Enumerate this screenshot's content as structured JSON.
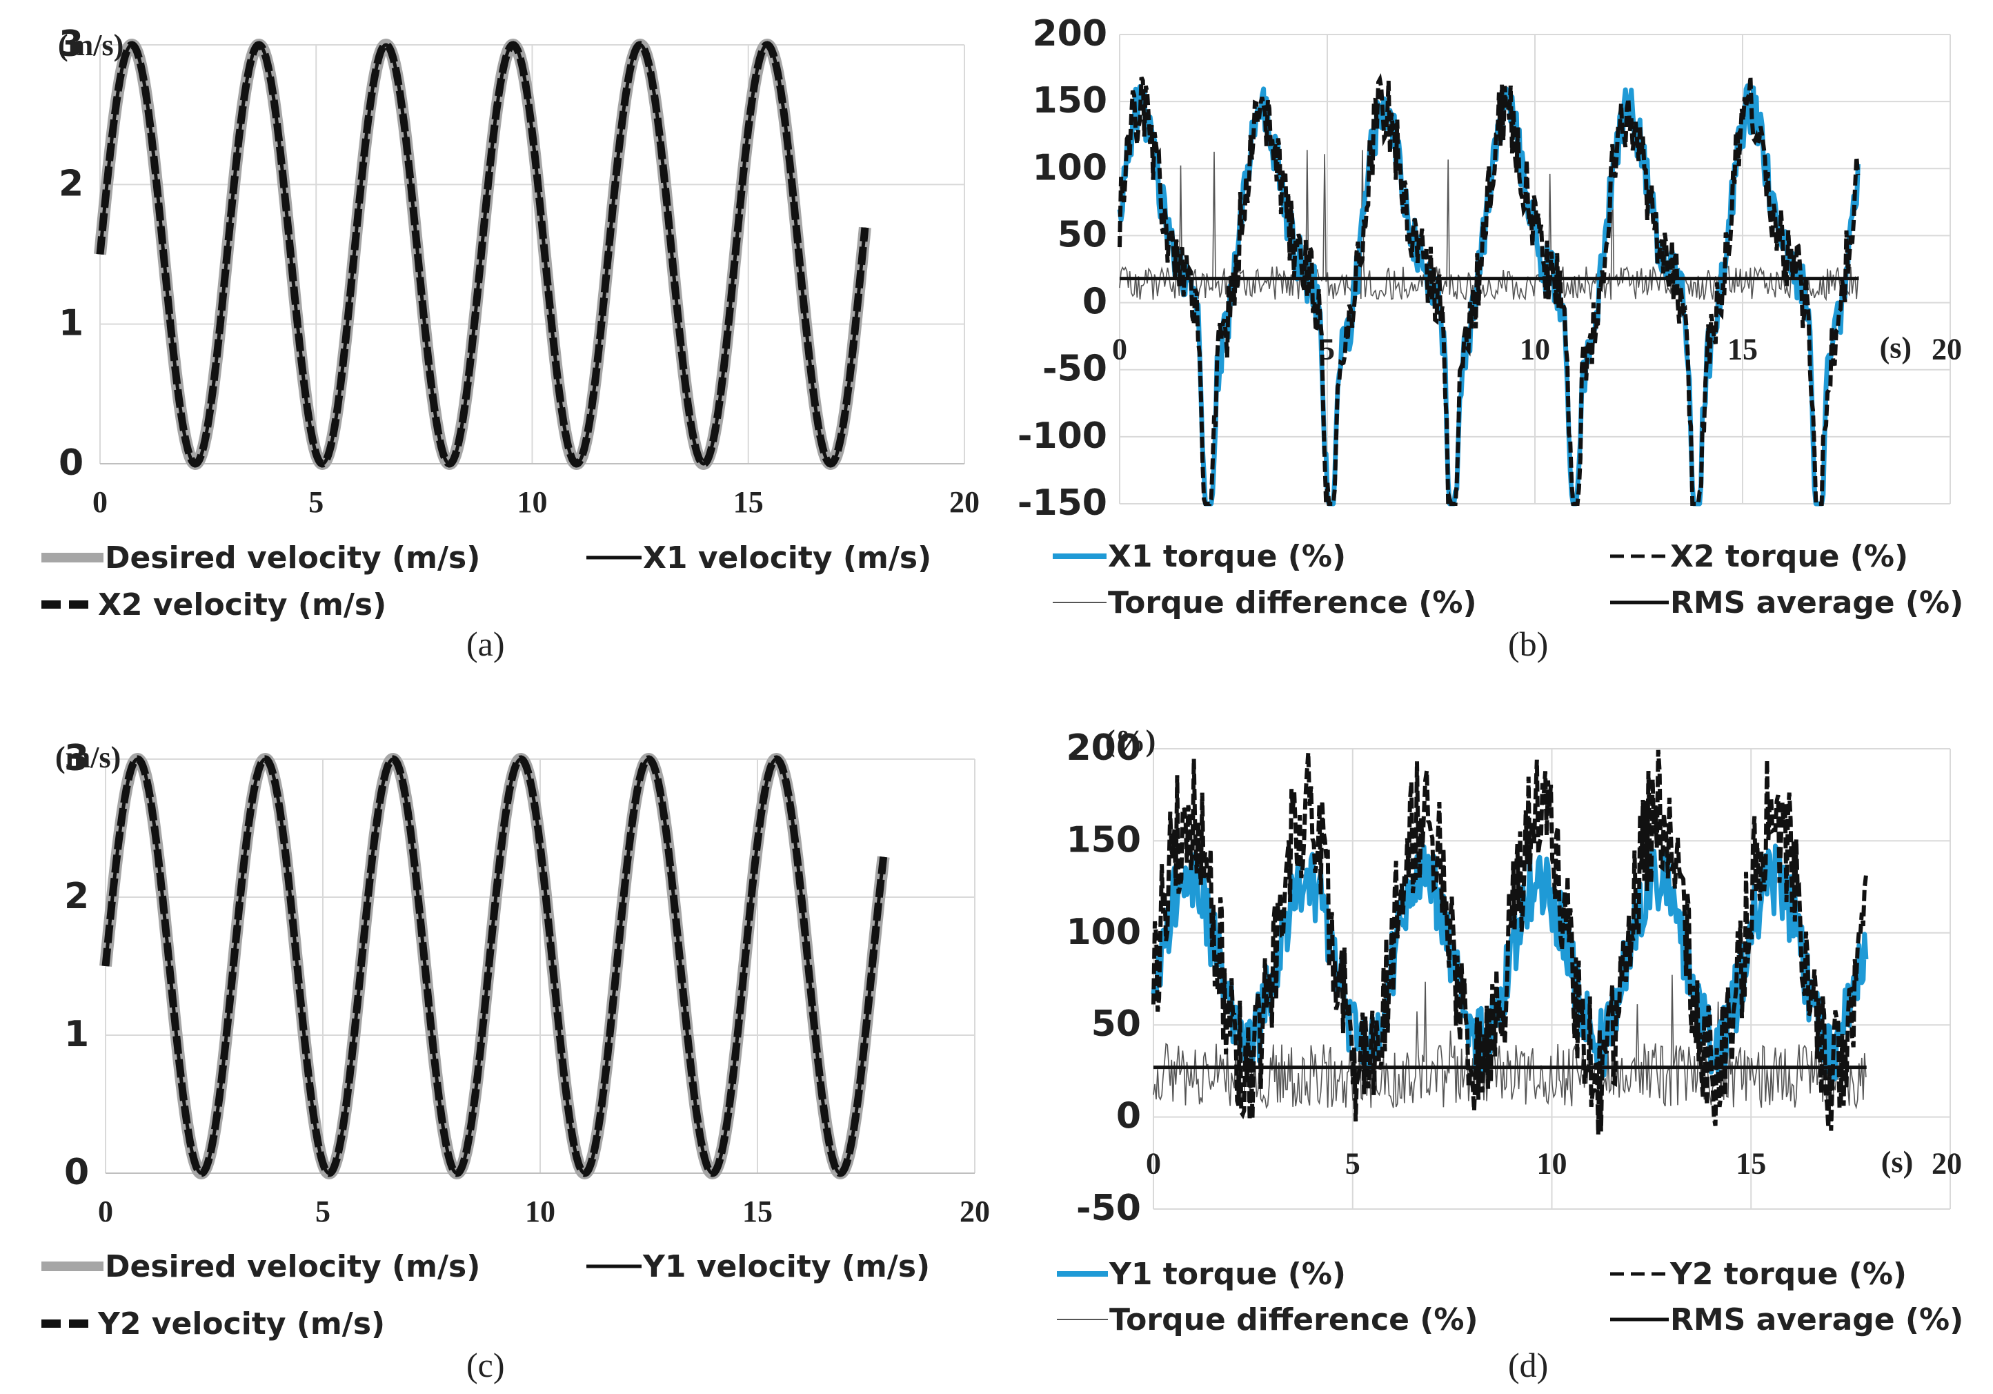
{
  "figure": {
    "colors": {
      "desired": "#a6a6a6",
      "black": "#111111",
      "blue": "#1f9ad6",
      "diff": "#555555",
      "grid": "#d9d9d9"
    }
  },
  "chart_data": [
    {
      "id": "a",
      "type": "line",
      "caption": "(a)",
      "ylabel": "(m/s)",
      "xlim": [
        0,
        20
      ],
      "ylim": [
        0,
        3
      ],
      "xticks": [
        "0",
        "5",
        "10",
        "15",
        "20"
      ],
      "yticks": [
        "0",
        "1",
        "2",
        "3"
      ],
      "signal": {
        "mean": 1.5,
        "amplitude": 1.5,
        "period": 2.94,
        "duration": 17.7
      },
      "series": [
        {
          "name": "Desired velocity (m/s)",
          "role": "desired"
        },
        {
          "name": "X1 velocity (m/s)",
          "role": "solid"
        },
        {
          "name": "X2 velocity (m/s)",
          "role": "dashed"
        }
      ],
      "legend": [
        "Desired velocity (m/s)",
        "X1 velocity (m/s)",
        "X2 velocity (m/s)"
      ]
    },
    {
      "id": "b",
      "type": "line",
      "caption": "(b)",
      "xlabel": "(s)",
      "xlim": [
        0,
        20
      ],
      "ylim": [
        -150,
        200
      ],
      "xticks": [
        "0",
        "5",
        "10",
        "15",
        "20"
      ],
      "yticks": [
        "-150",
        "-100",
        "-50",
        "0",
        "50",
        "100",
        "150",
        "200"
      ],
      "rms_average": 18,
      "duration": 17.8,
      "series": [
        {
          "name": "X1 torque (%)",
          "role": "blue"
        },
        {
          "name": "X2 torque (%)",
          "role": "dashed"
        },
        {
          "name": "Torque difference (%)",
          "role": "diff"
        },
        {
          "name": "RMS average (%)",
          "role": "rms"
        }
      ],
      "legend": [
        "X1 torque (%)",
        "X2 torque (%)",
        "Torque difference (%)",
        "RMS average (%)"
      ]
    },
    {
      "id": "c",
      "type": "line",
      "caption": "(c)",
      "ylabel": "(m/s)",
      "xlim": [
        0,
        20
      ],
      "ylim": [
        0,
        3
      ],
      "xticks": [
        "0",
        "5",
        "10",
        "15",
        "20"
      ],
      "yticks": [
        "0",
        "1",
        "2",
        "3"
      ],
      "signal": {
        "mean": 1.5,
        "amplitude": 1.5,
        "period": 2.94,
        "duration": 17.9
      },
      "series": [
        {
          "name": "Desired velocity (m/s)",
          "role": "desired"
        },
        {
          "name": "Y1 velocity (m/s)",
          "role": "solid"
        },
        {
          "name": "Y2 velocity (m/s)",
          "role": "dashed"
        }
      ],
      "legend": [
        "Desired velocity (m/s)",
        "Y1 velocity (m/s)",
        "Y2 velocity (m/s)"
      ]
    },
    {
      "id": "d",
      "type": "line",
      "caption": "(d)",
      "ylabel": "(%)",
      "xlabel": "(s)",
      "xlim": [
        0,
        20
      ],
      "ylim": [
        -50,
        200
      ],
      "xticks": [
        "0",
        "5",
        "10",
        "15",
        "20"
      ],
      "yticks": [
        "-50",
        "0",
        "50",
        "100",
        "150",
        "200"
      ],
      "rms_average": 27,
      "duration": 17.9,
      "series": [
        {
          "name": "Y1 torque (%)",
          "role": "blue"
        },
        {
          "name": "Y2 torque (%)",
          "role": "dashed"
        },
        {
          "name": "Torque difference (%)",
          "role": "diff"
        },
        {
          "name": "RMS average (%)",
          "role": "rms"
        }
      ],
      "legend": [
        "Y1 torque (%)",
        "Y2 torque (%)",
        "Torque difference (%)",
        "RMS average (%)"
      ]
    }
  ]
}
